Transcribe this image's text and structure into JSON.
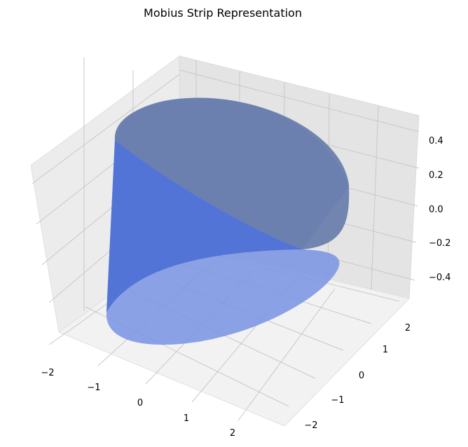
{
  "chart_data": {
    "type": "surface",
    "title": "Mobius Strip Representation",
    "xlabel": "",
    "ylabel": "",
    "zlabel": "",
    "x_ticks": [
      "−2",
      "−1",
      "0",
      "1",
      "2"
    ],
    "y_ticks": [
      "−2",
      "−1",
      "0",
      "1",
      "2"
    ],
    "z_ticks": [
      "−0.4",
      "−0.2",
      "0.0",
      "0.2",
      "0.4"
    ],
    "xlim": [
      -2.2,
      2.6
    ],
    "ylim": [
      -2.4,
      2.6
    ],
    "zlim": [
      -0.5,
      0.5
    ],
    "surface_color": "#6b8bd6",
    "grid": true
  }
}
